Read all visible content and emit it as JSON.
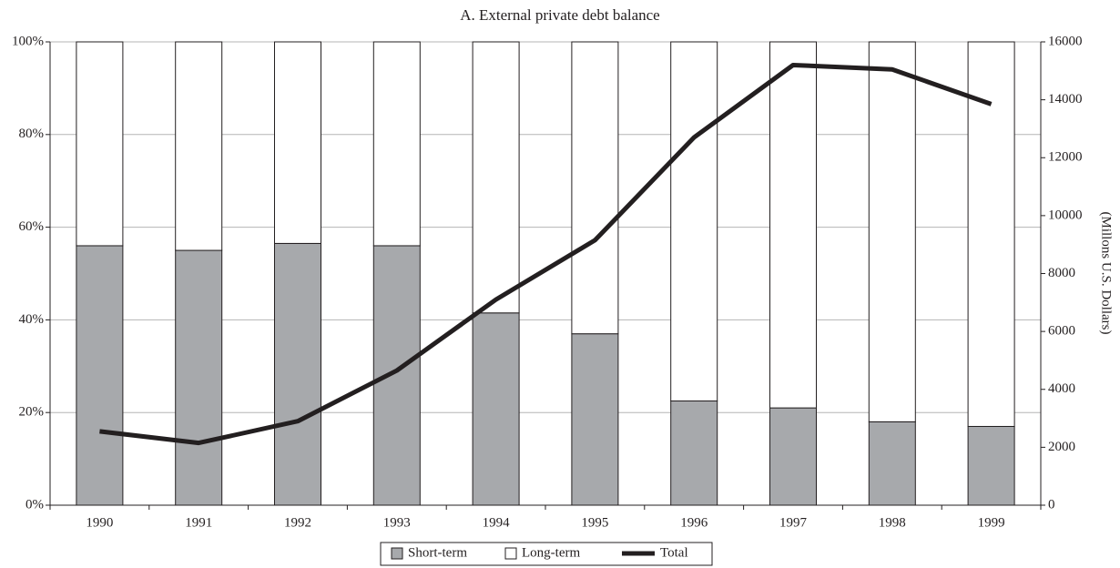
{
  "chart_data": {
    "type": "bar",
    "title": "A. External private debt balance",
    "categories": [
      "1990",
      "1991",
      "1992",
      "1993",
      "1994",
      "1995",
      "1996",
      "1997",
      "1998",
      "1999"
    ],
    "series": [
      {
        "name": "Short-term",
        "type": "bar",
        "color": "#a7a9ac",
        "values": [
          56,
          55,
          56.5,
          56,
          41.5,
          37,
          22.5,
          21,
          18,
          17
        ]
      },
      {
        "name": "Long-term",
        "type": "bar",
        "color": "#ffffff",
        "values": [
          44,
          45,
          43.5,
          44,
          58.5,
          63,
          77.5,
          79,
          82,
          83
        ]
      },
      {
        "name": "Total",
        "type": "line",
        "axis": "y2",
        "color": "#231f20",
        "values": [
          2550,
          2150,
          2900,
          4650,
          7100,
          9150,
          12700,
          15200,
          15050,
          13850
        ]
      }
    ],
    "ylim": [
      0,
      100
    ],
    "yticks": [
      {
        "value": 0,
        "label": "0%"
      },
      {
        "value": 20,
        "label": "20%"
      },
      {
        "value": 40,
        "label": "40%"
      },
      {
        "value": 60,
        "label": "60%"
      },
      {
        "value": 80,
        "label": "80%"
      },
      {
        "value": 100,
        "label": "100%"
      }
    ],
    "y2lim": [
      0,
      16000
    ],
    "y2ticks": [
      0,
      2000,
      4000,
      6000,
      8000,
      10000,
      12000,
      14000,
      16000
    ],
    "y2label": "(Millons U.S. Dollars)",
    "grid": true,
    "legend": "bottom"
  }
}
